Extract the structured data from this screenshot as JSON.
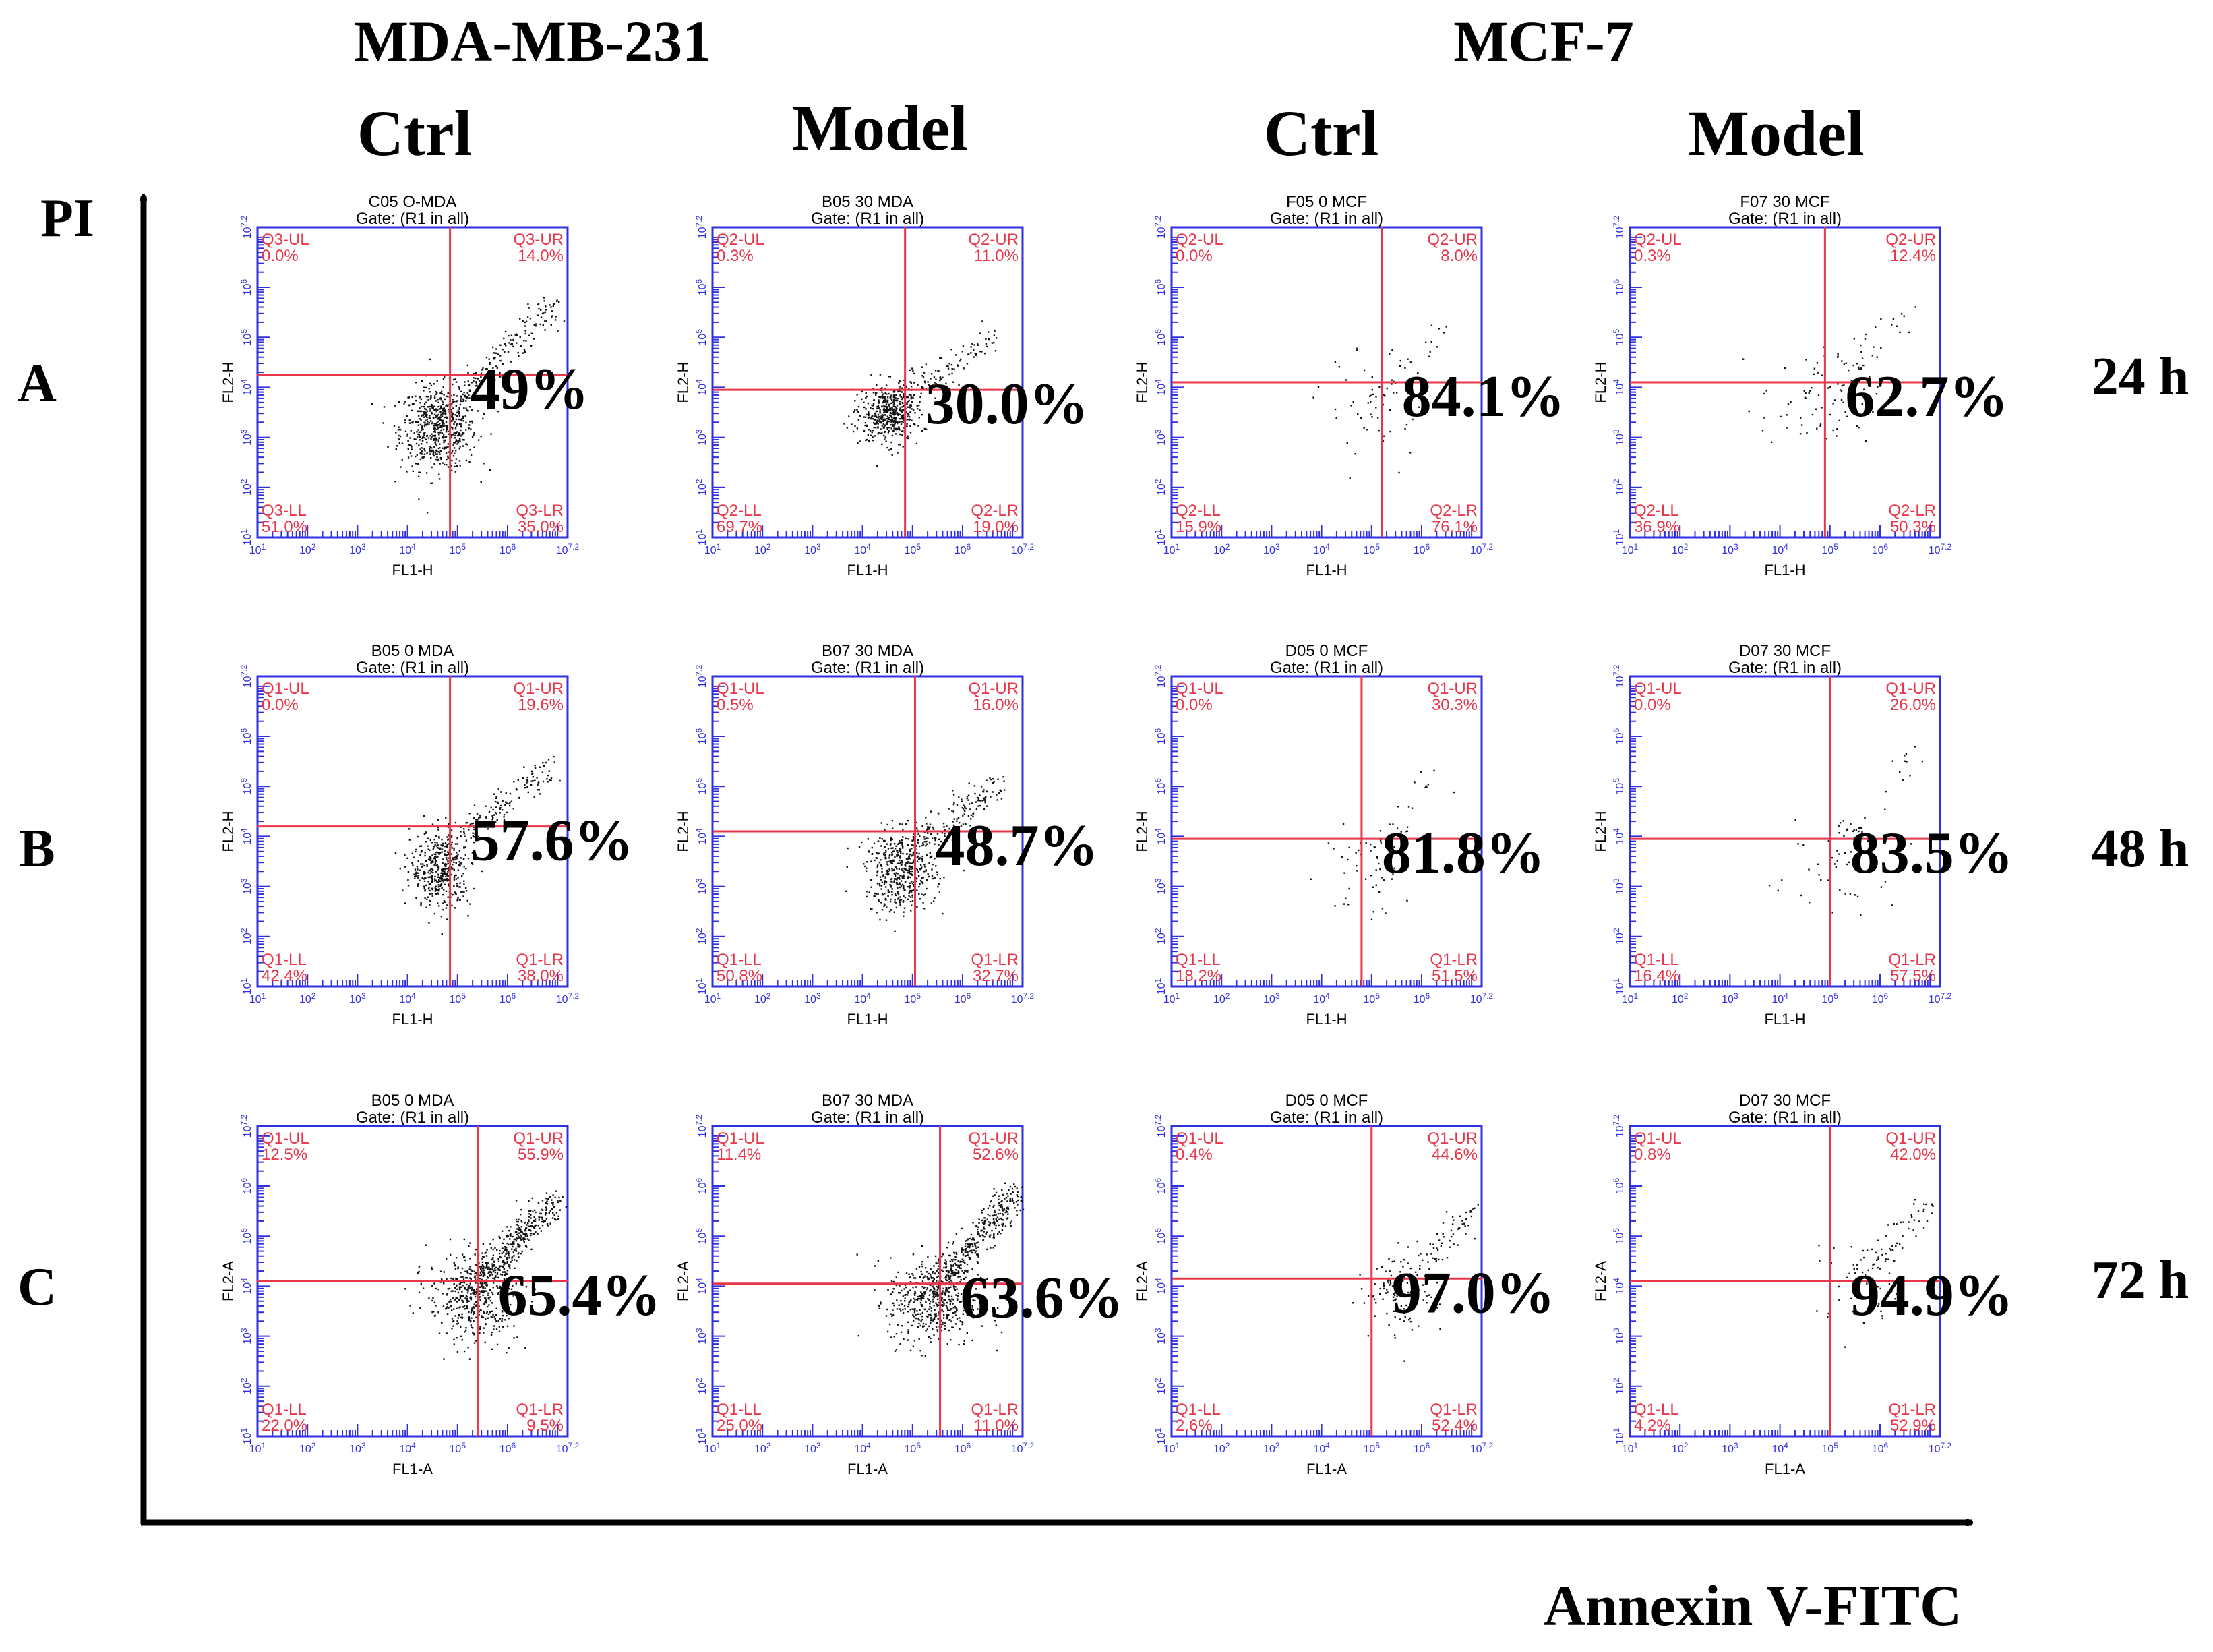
{
  "figure": {
    "cell_lines": [
      "MDA-MB-231",
      "MCF-7"
    ],
    "columns": [
      "Ctrl",
      "Model",
      "Ctrl",
      "Model"
    ],
    "rows": [
      "A",
      "B",
      "C"
    ],
    "times": [
      "24 h",
      "48 h",
      "72 h"
    ],
    "y_axis_label": "PI",
    "x_axis_label": "Annexin V-FITC"
  },
  "chart_data": [
    {
      "type": "scatter",
      "row": "A",
      "column": "Ctrl",
      "cell_line": "MDA-MB-231",
      "title": "C05 O-MDA",
      "gate": "Gate: (R1 in all)",
      "xlabel": "FL1-H",
      "ylabel": "FL2-H",
      "xlim": [
        1,
        7.2
      ],
      "ylim": [
        1,
        7.2
      ],
      "quadrant_split": {
        "x": 4.85,
        "y": 4.25
      },
      "quadrants": {
        "UL": {
          "label": "Q3-UL",
          "percent": "0.0%"
        },
        "UR": {
          "label": "Q3-UR",
          "percent": "14.0%"
        },
        "LL": {
          "label": "Q3-LL",
          "percent": "51.0%"
        },
        "LR": {
          "label": "Q3-LR",
          "percent": "35.0%"
        }
      },
      "annotation": "49%",
      "cluster": {
        "cx": 4.6,
        "cy": 3.2,
        "sx": 0.38,
        "sy": 0.42,
        "n": 600
      },
      "tail": {
        "x0": 4.8,
        "y0": 3.6,
        "x1": 6.9,
        "y1": 5.7,
        "n": 170
      }
    },
    {
      "type": "scatter",
      "row": "A",
      "column": "Model",
      "cell_line": "MDA-MB-231",
      "title": "B05 30 MDA",
      "gate": "Gate: (R1 in all)",
      "xlabel": "FL1-H",
      "ylabel": "FL2-H",
      "xlim": [
        1,
        7.2
      ],
      "ylim": [
        1,
        7.2
      ],
      "quadrant_split": {
        "x": 4.85,
        "y": 3.95
      },
      "quadrants": {
        "UL": {
          "label": "Q2-UL",
          "percent": "0.3%"
        },
        "UR": {
          "label": "Q2-UR",
          "percent": "11.0%"
        },
        "LL": {
          "label": "Q2-LL",
          "percent": "69.7%"
        },
        "LR": {
          "label": "Q2-LR",
          "percent": "19.0%"
        }
      },
      "annotation": "30.0%",
      "cluster": {
        "cx": 4.5,
        "cy": 3.5,
        "sx": 0.28,
        "sy": 0.28,
        "n": 480
      },
      "tail": {
        "x0": 4.7,
        "y0": 3.7,
        "x1": 6.6,
        "y1": 5.0,
        "n": 120
      }
    },
    {
      "type": "scatter",
      "row": "A",
      "column": "Ctrl",
      "cell_line": "MCF-7",
      "title": "F05 0 MCF",
      "gate": "Gate: (R1 in all)",
      "xlabel": "FL1-H",
      "ylabel": "FL2-H",
      "xlim": [
        1,
        7.2
      ],
      "ylim": [
        1,
        7.2
      ],
      "quadrant_split": {
        "x": 5.2,
        "y": 4.1
      },
      "quadrants": {
        "UL": {
          "label": "Q2-UL",
          "percent": "0.0%"
        },
        "UR": {
          "label": "Q2-UR",
          "percent": "8.0%"
        },
        "LL": {
          "label": "Q2-LL",
          "percent": "15.9%"
        },
        "LR": {
          "label": "Q2-LR",
          "percent": "76.1%"
        }
      },
      "annotation": "84.1%",
      "cluster": {
        "cx": 5.1,
        "cy": 3.6,
        "sx": 0.55,
        "sy": 0.55,
        "n": 55
      },
      "tail": {
        "x0": 5.0,
        "y0": 3.8,
        "x1": 6.4,
        "y1": 5.2,
        "n": 22
      }
    },
    {
      "type": "scatter",
      "row": "A",
      "column": "Model",
      "cell_line": "MCF-7",
      "title": "F07 30 MCF",
      "gate": "Gate: (R1 in all)",
      "xlabel": "FL1-H",
      "ylabel": "FL2-H",
      "xlim": [
        1,
        7.2
      ],
      "ylim": [
        1,
        7.2
      ],
      "quadrant_split": {
        "x": 4.9,
        "y": 4.1
      },
      "quadrants": {
        "UL": {
          "label": "Q2-UL",
          "percent": "0.3%"
        },
        "UR": {
          "label": "Q2-UR",
          "percent": "12.4%"
        },
        "LL": {
          "label": "Q2-LL",
          "percent": "36.9%"
        },
        "LR": {
          "label": "Q2-LR",
          "percent": "50.3%"
        }
      },
      "annotation": "62.7%",
      "cluster": {
        "cx": 4.8,
        "cy": 3.7,
        "sx": 0.6,
        "sy": 0.55,
        "n": 80
      },
      "tail": {
        "x0": 4.9,
        "y0": 3.9,
        "x1": 6.6,
        "y1": 5.5,
        "n": 30
      }
    },
    {
      "type": "scatter",
      "row": "B",
      "column": "Ctrl",
      "cell_line": "MDA-MB-231",
      "title": "B05 0 MDA",
      "gate": "Gate: (R1 in all)",
      "xlabel": "FL1-H",
      "ylabel": "FL2-H",
      "xlim": [
        1,
        7.2
      ],
      "ylim": [
        1,
        7.2
      ],
      "quadrant_split": {
        "x": 4.85,
        "y": 4.2
      },
      "quadrants": {
        "UL": {
          "label": "Q1-UL",
          "percent": "0.0%"
        },
        "UR": {
          "label": "Q1-UR",
          "percent": "19.6%"
        },
        "LL": {
          "label": "Q1-LL",
          "percent": "42.4%"
        },
        "LR": {
          "label": "Q1-LR",
          "percent": "38.0%"
        }
      },
      "annotation": "57.6%",
      "cluster": {
        "cx": 4.65,
        "cy": 3.35,
        "sx": 0.3,
        "sy": 0.38,
        "n": 420
      },
      "tail": {
        "x0": 4.8,
        "y0": 3.8,
        "x1": 6.8,
        "y1": 5.4,
        "n": 160
      }
    },
    {
      "type": "scatter",
      "row": "B",
      "column": "Model",
      "cell_line": "MDA-MB-231",
      "title": "B07 30 MDA",
      "gate": "Gate: (R1 in all)",
      "xlabel": "FL1-H",
      "ylabel": "FL2-H",
      "xlim": [
        1,
        7.2
      ],
      "ylim": [
        1,
        7.2
      ],
      "quadrant_split": {
        "x": 5.05,
        "y": 4.1
      },
      "quadrants": {
        "UL": {
          "label": "Q1-UL",
          "percent": "0.5%"
        },
        "UR": {
          "label": "Q1-UR",
          "percent": "16.0%"
        },
        "LL": {
          "label": "Q1-LL",
          "percent": "50.8%"
        },
        "LR": {
          "label": "Q1-LR",
          "percent": "32.7%"
        }
      },
      "annotation": "48.7%",
      "cluster": {
        "cx": 4.75,
        "cy": 3.3,
        "sx": 0.35,
        "sy": 0.4,
        "n": 460
      },
      "tail": {
        "x0": 4.9,
        "y0": 3.7,
        "x1": 6.7,
        "y1": 5.1,
        "n": 170
      }
    },
    {
      "type": "scatter",
      "row": "B",
      "column": "Ctrl",
      "cell_line": "MCF-7",
      "title": "D05 0 MCF",
      "gate": "Gate: (R1 in all)",
      "xlabel": "FL1-H",
      "ylabel": "FL2-H",
      "xlim": [
        1,
        7.2
      ],
      "ylim": [
        1,
        7.2
      ],
      "quadrant_split": {
        "x": 4.8,
        "y": 3.95
      },
      "quadrants": {
        "UL": {
          "label": "Q1-UL",
          "percent": "0.0%"
        },
        "UR": {
          "label": "Q1-UR",
          "percent": "30.3%"
        },
        "LL": {
          "label": "Q1-LL",
          "percent": "18.2%"
        },
        "LR": {
          "label": "Q1-LR",
          "percent": "51.5%"
        }
      },
      "annotation": "81.8%",
      "cluster": {
        "cx": 4.9,
        "cy": 3.3,
        "sx": 0.45,
        "sy": 0.45,
        "n": 45
      },
      "tail": {
        "x0": 4.8,
        "y0": 3.5,
        "x1": 6.3,
        "y1": 5.3,
        "n": 25
      }
    },
    {
      "type": "scatter",
      "row": "B",
      "column": "Model",
      "cell_line": "MCF-7",
      "title": "D07 30 MCF",
      "gate": "Gate: (R1 in all)",
      "xlabel": "FL1-H",
      "ylabel": "FL2-H",
      "xlim": [
        1,
        7.2
      ],
      "ylim": [
        1,
        7.2
      ],
      "quadrant_split": {
        "x": 5.0,
        "y": 3.95
      },
      "quadrants": {
        "UL": {
          "label": "Q1-UL",
          "percent": "0.0%"
        },
        "UR": {
          "label": "Q1-UR",
          "percent": "26.0%"
        },
        "LL": {
          "label": "Q1-LL",
          "percent": "16.4%"
        },
        "LR": {
          "label": "Q1-LR",
          "percent": "57.5%"
        }
      },
      "annotation": "83.5%",
      "cluster": {
        "cx": 5.1,
        "cy": 3.5,
        "sx": 0.5,
        "sy": 0.5,
        "n": 45
      },
      "tail": {
        "x0": 5.0,
        "y0": 3.6,
        "x1": 6.7,
        "y1": 5.6,
        "n": 25
      }
    },
    {
      "type": "scatter",
      "row": "C",
      "column": "Ctrl",
      "cell_line": "MDA-MB-231",
      "title": "B05 0 MDA",
      "gate": "Gate: (R1 in all)",
      "xlabel": "FL1-A",
      "ylabel": "FL2-A",
      "xlim": [
        1,
        7.2
      ],
      "ylim": [
        1,
        7.2
      ],
      "quadrant_split": {
        "x": 5.4,
        "y": 4.1
      },
      "quadrants": {
        "UL": {
          "label": "Q1-UL",
          "percent": "12.5%"
        },
        "UR": {
          "label": "Q1-UR",
          "percent": "55.9%"
        },
        "LL": {
          "label": "Q1-LL",
          "percent": "22.0%"
        },
        "LR": {
          "label": "Q1-LR",
          "percent": "9.5%"
        }
      },
      "annotation": "65.4%",
      "cluster": {
        "cx": 5.3,
        "cy": 3.8,
        "sx": 0.45,
        "sy": 0.45,
        "n": 450
      },
      "tail": {
        "x0": 5.3,
        "y0": 4.0,
        "x1": 7.0,
        "y1": 5.8,
        "n": 380
      }
    },
    {
      "type": "scatter",
      "row": "C",
      "column": "Model",
      "cell_line": "MDA-MB-231",
      "title": "B07 30 MDA",
      "gate": "Gate: (R1 in all)",
      "xlabel": "FL1-A",
      "ylabel": "FL2-A",
      "xlim": [
        1,
        7.2
      ],
      "ylim": [
        1,
        7.2
      ],
      "quadrant_split": {
        "x": 5.55,
        "y": 4.05
      },
      "quadrants": {
        "UL": {
          "label": "Q1-UL",
          "percent": "11.4%"
        },
        "UR": {
          "label": "Q1-UR",
          "percent": "52.6%"
        },
        "LL": {
          "label": "Q1-LL",
          "percent": "25.0%"
        },
        "LR": {
          "label": "Q1-LR",
          "percent": "11.0%"
        }
      },
      "annotation": "63.6%",
      "cluster": {
        "cx": 5.4,
        "cy": 3.7,
        "sx": 0.45,
        "sy": 0.45,
        "n": 480
      },
      "tail": {
        "x0": 5.4,
        "y0": 3.9,
        "x1": 7.1,
        "y1": 5.9,
        "n": 400
      }
    },
    {
      "type": "scatter",
      "row": "C",
      "column": "Ctrl",
      "cell_line": "MCF-7",
      "title": "D05 0 MCF",
      "gate": "Gate: (R1 in all)",
      "xlabel": "FL1-A",
      "ylabel": "FL2-A",
      "xlim": [
        1,
        7.2
      ],
      "ylim": [
        1,
        7.2
      ],
      "quadrant_split": {
        "x": 5.0,
        "y": 4.15
      },
      "quadrants": {
        "UL": {
          "label": "Q1-UL",
          "percent": "0.4%"
        },
        "UR": {
          "label": "Q1-UR",
          "percent": "44.6%"
        },
        "LL": {
          "label": "Q1-LL",
          "percent": "2.6%"
        },
        "LR": {
          "label": "Q1-LR",
          "percent": "52.4%"
        }
      },
      "annotation": "97.0%",
      "cluster": {
        "cx": 5.6,
        "cy": 3.9,
        "sx": 0.45,
        "sy": 0.45,
        "n": 90
      },
      "tail": {
        "x0": 5.3,
        "y0": 3.8,
        "x1": 7.1,
        "y1": 5.6,
        "n": 90
      }
    },
    {
      "type": "scatter",
      "row": "C",
      "column": "Model",
      "cell_line": "MCF-7",
      "title": "D07 30 MCF",
      "gate": "Gate: (R1 in all)",
      "xlabel": "FL1-A",
      "ylabel": "FL2-A",
      "xlim": [
        1,
        7.2
      ],
      "ylim": [
        1,
        7.2
      ],
      "quadrant_split": {
        "x": 5.0,
        "y": 4.1
      },
      "quadrants": {
        "UL": {
          "label": "Q1-UL",
          "percent": "0.8%"
        },
        "UR": {
          "label": "Q1-UR",
          "percent": "42.0%"
        },
        "LL": {
          "label": "Q1-LL",
          "percent": "4.2%"
        },
        "LR": {
          "label": "Q1-LR",
          "percent": "52.9%"
        }
      },
      "annotation": "94.9%",
      "cluster": {
        "cx": 5.7,
        "cy": 4.0,
        "sx": 0.5,
        "sy": 0.5,
        "n": 50
      },
      "tail": {
        "x0": 5.6,
        "y0": 4.2,
        "x1": 7.1,
        "y1": 5.7,
        "n": 55
      }
    }
  ]
}
